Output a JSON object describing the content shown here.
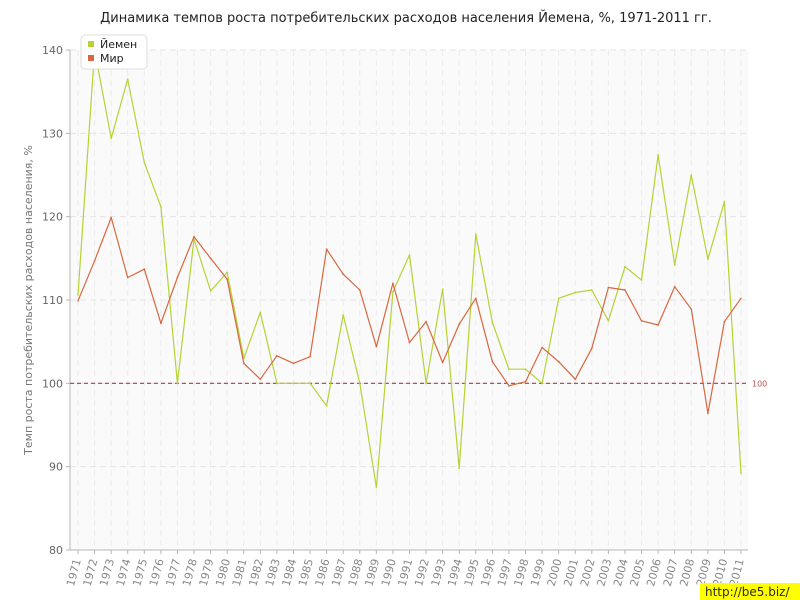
{
  "chart_data": {
    "type": "line",
    "title": "Динамика темпов роста потребительских расходов населения Йемена, %, 1971-2011 гг.",
    "ylabel": "Темп роста потребительских расходов населения, %",
    "ylim": [
      80,
      140
    ],
    "yticks": [
      "80",
      "90",
      "100",
      "110",
      "120",
      "130",
      "140"
    ],
    "grid": true,
    "legend_position": "top-left",
    "x": [
      "1971",
      "1972",
      "1973",
      "1974",
      "1975",
      "1976",
      "1977",
      "1978",
      "1979",
      "1980",
      "1981",
      "1982",
      "1983",
      "1984",
      "1985",
      "1986",
      "1987",
      "1988",
      "1989",
      "1990",
      "1991",
      "1992",
      "1993",
      "1994",
      "1995",
      "1996",
      "1997",
      "1998",
      "1999",
      "2000",
      "2001",
      "2002",
      "2003",
      "2004",
      "2005",
      "2006",
      "2007",
      "2008",
      "2009",
      "2010",
      "2011"
    ],
    "series": [
      {
        "name": "Йемен",
        "color": "#b5d334",
        "values": [
          110.6,
          140.0,
          129.4,
          136.5,
          126.5,
          121.2,
          100.0,
          117.3,
          111.1,
          113.3,
          103.0,
          108.5,
          100.0,
          100.0,
          100.0,
          97.3,
          108.2,
          100.0,
          87.5,
          111.0,
          115.4,
          100.0,
          111.3,
          89.8,
          117.9,
          107.3,
          101.7,
          101.7,
          100.0,
          110.2,
          110.9,
          111.2,
          107.5,
          114.0,
          112.4,
          127.4,
          114.2,
          125.0,
          114.9,
          121.8,
          89.2
        ]
      },
      {
        "name": "Мир",
        "color": "#d9673f",
        "values": [
          109.9,
          114.7,
          119.9,
          112.7,
          113.7,
          107.2,
          112.7,
          117.6,
          115.0,
          112.5,
          102.4,
          100.5,
          103.3,
          102.4,
          103.2,
          116.1,
          113.1,
          111.2,
          104.4,
          112.0,
          104.9,
          107.4,
          102.5,
          107.1,
          110.2,
          102.6,
          99.7,
          100.2,
          104.3,
          102.6,
          100.5,
          104.2,
          111.5,
          111.2,
          107.5,
          107.0,
          111.6,
          108.9,
          96.4,
          107.4,
          110.2
        ]
      }
    ],
    "reference_line": {
      "value": 100,
      "label": "100",
      "color": "#b03a48"
    }
  },
  "watermark": "http://be5.biz/"
}
